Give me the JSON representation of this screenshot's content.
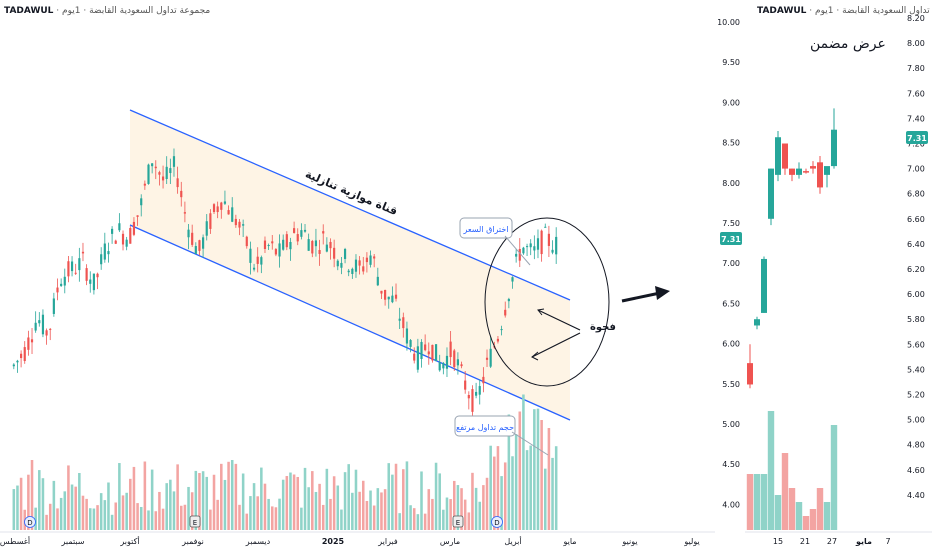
{
  "header": {
    "symbol": "TADAWUL",
    "sub": "· مجموعة تداول السعودية القابضة · 1يوم"
  },
  "colors": {
    "up": "#26a69a",
    "down": "#ef5350",
    "vol_up": "#8fd3c8",
    "vol_down": "#f3a4a2",
    "channel": "#2962ff",
    "price_badge": "#26a69a"
  },
  "main_chart": {
    "x_labels": [
      "أغسطس",
      "سبتمبر",
      "أكتوبر",
      "نوفمبر",
      "ديسمبر",
      "2025",
      "فبراير",
      "مارس",
      "أبريل",
      "مايو",
      "يونيو",
      "يوليو"
    ],
    "annotations": {
      "channel_label": "قناة موازية تنازلية",
      "breakout": "اختراق السعر",
      "gap": "فجوة",
      "high_volume": "حجم تداول مرتفع"
    },
    "event_markers": [
      "D",
      "E",
      "E",
      "D"
    ]
  },
  "chart_data": [
    {
      "type": "candlestick",
      "title": "TADAWUL · مجموعة تداول السعودية القابضة · 1يوم",
      "x_labels": [
        "أغسطس",
        "سبتمبر",
        "أكتوبر",
        "نوفمبر",
        "ديسمبر",
        "2025",
        "فبراير",
        "مارس",
        "أبريل",
        "مايو",
        "يونيو",
        "يوليو"
      ],
      "series": [
        {
          "name": "close",
          "values": [
            5.8,
            6.0,
            6.4,
            6.2,
            6.9,
            7.0,
            7.1,
            6.8,
            7.3,
            7.5,
            7.4,
            7.8,
            8.4,
            8.1,
            8.3,
            7.6,
            7.2,
            7.6,
            7.9,
            7.7,
            7.4,
            7.0,
            7.3,
            7.2,
            7.4,
            7.5,
            7.3,
            7.4,
            7.2,
            7.1,
            7.0,
            7.2,
            6.7,
            6.6,
            6.2,
            5.9,
            6.1,
            5.8,
            6.0,
            5.6,
            5.3,
            5.8,
            6.2,
            6.8,
            7.3,
            7.2,
            7.4,
            7.31
          ]
        }
      ],
      "volume_note": "spike in April",
      "price_range_main": [
        4.0,
        10.0
      ],
      "last_price": "7.31"
    },
    {
      "type": "candlestick",
      "title": "عرض مضمن",
      "y_ticks": [
        "8.20",
        "8.00",
        "7.80",
        "7.60",
        "7.40",
        "7.20",
        "7.00",
        "6.80",
        "6.60",
        "6.40",
        "6.20",
        "6.00",
        "5.80",
        "5.60",
        "5.40",
        "5.20",
        "5.00",
        "4.80",
        "4.60",
        "4.40"
      ],
      "x_ticks": [
        "15",
        "21",
        "27",
        "مايو",
        "7"
      ],
      "candles": [
        {
          "o": 5.45,
          "h": 5.6,
          "l": 5.25,
          "c": 5.28
        },
        {
          "o": 5.75,
          "h": 5.82,
          "l": 5.72,
          "c": 5.8
        },
        {
          "o": 5.85,
          "h": 6.3,
          "l": 5.85,
          "c": 6.28
        },
        {
          "o": 6.6,
          "h": 7.0,
          "l": 6.55,
          "c": 7.0
        },
        {
          "o": 6.95,
          "h": 7.3,
          "l": 6.9,
          "c": 7.25
        },
        {
          "o": 7.2,
          "h": 7.2,
          "l": 6.95,
          "c": 7.0
        },
        {
          "o": 7.0,
          "h": 7.0,
          "l": 6.9,
          "c": 6.95
        },
        {
          "o": 6.95,
          "h": 7.05,
          "l": 6.92,
          "c": 7.0
        },
        {
          "o": 6.98,
          "h": 7.0,
          "l": 6.96,
          "c": 6.97
        },
        {
          "o": 7.02,
          "h": 7.06,
          "l": 6.96,
          "c": 7.0
        },
        {
          "o": 7.05,
          "h": 7.1,
          "l": 6.8,
          "c": 6.85
        },
        {
          "o": 6.95,
          "h": 7.0,
          "l": 6.85,
          "c": 7.02
        },
        {
          "o": 7.02,
          "h": 7.48,
          "l": 7.0,
          "c": 7.31
        }
      ],
      "volume_relative": [
        0.4,
        0.4,
        0.4,
        0.85,
        0.25,
        0.55,
        0.3,
        0.2,
        0.1,
        0.15,
        0.3,
        0.2,
        0.75
      ],
      "last_price": "7.31"
    }
  ],
  "mid_axis": {
    "ticks": [
      "10.00",
      "9.50",
      "9.00",
      "8.50",
      "8.00",
      "7.50",
      "7.00",
      "6.50",
      "6.00",
      "5.50",
      "5.00",
      "4.50",
      "4.00"
    ],
    "price_badge": "7.31"
  },
  "zoom": {
    "title": "عرض مضمن",
    "price_badge": "7.31"
  }
}
